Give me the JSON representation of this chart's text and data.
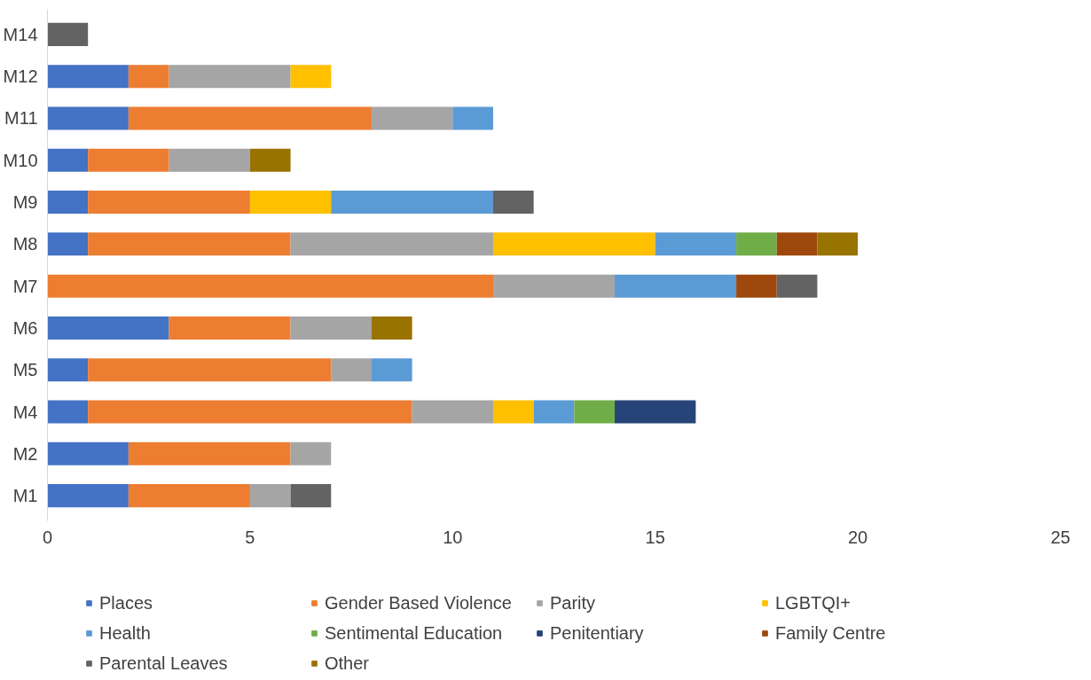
{
  "chart_data": {
    "type": "bar",
    "orientation": "horizontal",
    "stacked": true,
    "categories": [
      "M14",
      "M12",
      "M11",
      "M10",
      "M9",
      "M8",
      "M7",
      "M6",
      "M5",
      "M4",
      "M2",
      "M1"
    ],
    "series": [
      {
        "name": "Places",
        "color": "#4472c4",
        "values": [
          null,
          2,
          2,
          1,
          1,
          1,
          null,
          3,
          1,
          1,
          2,
          2
        ]
      },
      {
        "name": "Gender Based Violence",
        "color": "#ed7d31",
        "values": [
          null,
          1,
          6,
          2,
          4,
          5,
          11,
          3,
          6,
          8,
          4,
          3
        ]
      },
      {
        "name": "Parity",
        "color": "#a5a5a5",
        "values": [
          null,
          3,
          2,
          2,
          null,
          5,
          3,
          2,
          1,
          2,
          1,
          1
        ]
      },
      {
        "name": "LGBTQI+",
        "color": "#ffc000",
        "values": [
          null,
          1,
          null,
          null,
          2,
          4,
          null,
          null,
          null,
          1,
          null,
          null
        ]
      },
      {
        "name": "Health",
        "color": "#5b9bd5",
        "values": [
          null,
          null,
          1,
          null,
          4,
          2,
          3,
          null,
          1,
          1,
          null,
          null
        ]
      },
      {
        "name": "Sentimental Education",
        "color": "#70ad47",
        "values": [
          null,
          null,
          null,
          null,
          null,
          1,
          null,
          null,
          null,
          1,
          null,
          null
        ]
      },
      {
        "name": "Penitentiary",
        "color": "#264478",
        "values": [
          null,
          null,
          null,
          null,
          null,
          null,
          null,
          null,
          null,
          2,
          null,
          null
        ]
      },
      {
        "name": "Family Centre",
        "color": "#9e480e",
        "values": [
          null,
          null,
          null,
          null,
          null,
          1,
          1,
          null,
          null,
          null,
          null,
          null
        ]
      },
      {
        "name": "Parental Leaves",
        "color": "#636363",
        "values": [
          1,
          null,
          null,
          null,
          1,
          null,
          1,
          null,
          null,
          null,
          null,
          1
        ]
      },
      {
        "name": "Other",
        "color": "#997300",
        "values": [
          null,
          null,
          null,
          1,
          null,
          1,
          null,
          1,
          null,
          null,
          null,
          null
        ]
      }
    ],
    "xlim": [
      0,
      25
    ],
    "xticks": [
      0,
      5,
      10,
      15,
      20,
      25
    ],
    "grid": false,
    "legend": "bottom"
  }
}
